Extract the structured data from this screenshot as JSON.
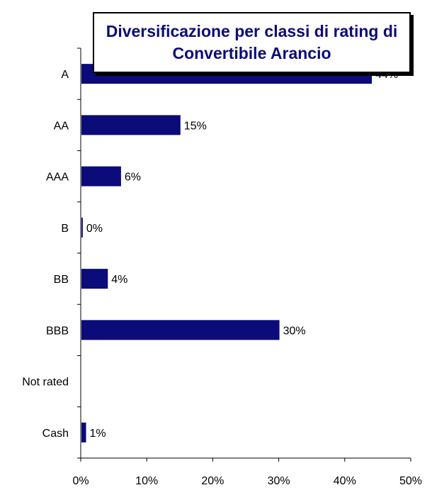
{
  "chart_data": {
    "type": "bar",
    "orientation": "horizontal",
    "title": "Diversificazione per classi di rating di Convertibile Arancio",
    "categories": [
      "A",
      "AA",
      "AAA",
      "B",
      "BB",
      "BBB",
      "Not rated",
      "Cash"
    ],
    "values": [
      44,
      15,
      6,
      0.2,
      4,
      30,
      null,
      0.7
    ],
    "data_labels": [
      "44%",
      "15%",
      "6%",
      "0%",
      "4%",
      "30%",
      "",
      "1%"
    ],
    "xlim": [
      0,
      50
    ],
    "x_ticks": [
      0,
      10,
      20,
      30,
      40,
      50
    ],
    "x_tick_labels": [
      "0%",
      "10%",
      "20%",
      "30%",
      "40%",
      "50%"
    ],
    "xlabel": "",
    "ylabel": "",
    "grid": false,
    "legend": "none",
    "bar_color": "#0b0b7a"
  }
}
